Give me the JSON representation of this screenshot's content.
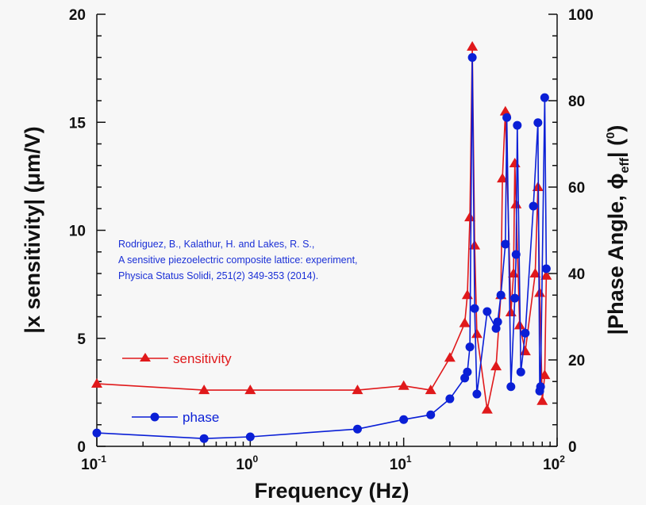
{
  "chart_data": {
    "type": "line",
    "xscale": "log",
    "xlabel": "Frequency (Hz)",
    "ylabel": "|x sensitivity| (μm/V)",
    "ylabel_right": "|Phase Angle, ϕ",
    "ylabel_right_sub": "eff",
    "ylabel_right_tail": "| (",
    "ylabel_right_sup": "0",
    "ylabel_right_end": ")",
    "xlim": [
      0.1,
      100
    ],
    "ylim": [
      0,
      20
    ],
    "ylim_right": [
      0,
      100
    ],
    "x_ticks": [
      {
        "base": "10",
        "exp": "-1",
        "value": 0.1
      },
      {
        "base": "10",
        "exp": "0",
        "value": 1
      },
      {
        "base": "10",
        "exp": "1",
        "value": 10
      },
      {
        "base": "10",
        "exp": "2",
        "value": 100
      }
    ],
    "y_ticks": [
      "0",
      "5",
      "10",
      "15",
      "20"
    ],
    "y_ticks_right": [
      "0",
      "20",
      "40",
      "60",
      "80",
      "100"
    ],
    "grid": false,
    "annotation": [
      "Rodriguez, B., Kalathur, H. and Lakes, R. S.,",
      "A sensitive piezoelectric composite lattice: experiment,",
      "Physica Status Solidi, 251(2) 349-353 (2014)."
    ],
    "series": [
      {
        "name": "sensitivity",
        "axis": "left",
        "color": "#e0191b",
        "marker": "triangle",
        "x": [
          0.1,
          0.5,
          1,
          5,
          10,
          15,
          20,
          25,
          26,
          27,
          28,
          29,
          30,
          35,
          40,
          43,
          44,
          46,
          50,
          52,
          53,
          54,
          57,
          62,
          72,
          75,
          77,
          80,
          83,
          85
        ],
        "y": [
          2.9,
          2.6,
          2.6,
          2.6,
          2.8,
          2.6,
          4.1,
          5.7,
          7.0,
          10.6,
          18.5,
          9.3,
          5.2,
          1.7,
          3.7,
          7.0,
          12.4,
          15.5,
          6.2,
          8.0,
          13.1,
          11.2,
          5.6,
          4.4,
          8.0,
          12.0,
          7.1,
          2.1,
          3.3,
          7.9
        ]
      },
      {
        "name": "phase",
        "axis": "right",
        "color": "#0a1fd6",
        "marker": "circle",
        "x": [
          0.1,
          0.5,
          1,
          5,
          10,
          15,
          20,
          25,
          26,
          27,
          28,
          29,
          30,
          35,
          40,
          41,
          43,
          46,
          47,
          50,
          53,
          54,
          55,
          58,
          62,
          70,
          75,
          77,
          78,
          83,
          85
        ],
        "y": [
          3.1,
          1.8,
          2.2,
          4.0,
          6.2,
          7.3,
          11.0,
          15.8,
          17.2,
          23.0,
          90.0,
          31.9,
          12.1,
          31.2,
          27.3,
          28.8,
          35.0,
          46.8,
          76.1,
          13.8,
          34.3,
          44.4,
          74.3,
          17.2,
          26.2,
          55.6,
          74.9,
          12.8,
          13.8,
          80.7,
          41.1
        ]
      }
    ],
    "legend": {
      "placement": "bottom-left",
      "entries": [
        "sensitivity",
        "phase"
      ]
    }
  }
}
